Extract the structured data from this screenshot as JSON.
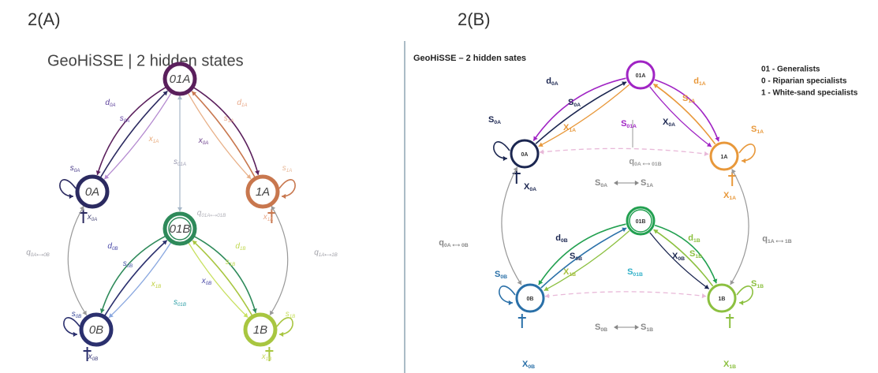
{
  "panels": [
    {
      "label": "2(A)",
      "title": "GeoHiSSE | 2 hidden states",
      "nodes": [
        {
          "label": "01A"
        },
        {
          "label": "0A"
        },
        {
          "label": "1A"
        },
        {
          "label": "01B"
        },
        {
          "label": "0B"
        },
        {
          "label": "1B"
        }
      ],
      "labels": [
        {
          "sym": "d",
          "sub": "0A"
        },
        {
          "sym": "s",
          "sub": "0A"
        },
        {
          "sym": "x",
          "sub": "1A"
        },
        {
          "sym": "s",
          "sub": "01A"
        },
        {
          "sym": "x",
          "sub": "0A"
        },
        {
          "sym": "s",
          "sub": "1A"
        },
        {
          "sym": "d",
          "sub": "1A"
        },
        {
          "sym": "s",
          "sub": "0A"
        },
        {
          "sym": "s",
          "sub": "1A"
        },
        {
          "sym": "x",
          "sub": "0A"
        },
        {
          "sym": "x",
          "sub": "1A"
        },
        {
          "sym": "q",
          "sub": "01A⟷01B"
        },
        {
          "sym": "q",
          "sub": "0A⟷0B"
        },
        {
          "sym": "q",
          "sub": "1A⟷1B"
        },
        {
          "sym": "d",
          "sub": "0B"
        },
        {
          "sym": "s",
          "sub": "0B"
        },
        {
          "sym": "x",
          "sub": "1B"
        },
        {
          "sym": "s",
          "sub": "01B"
        },
        {
          "sym": "x",
          "sub": "0B"
        },
        {
          "sym": "s",
          "sub": "1B"
        },
        {
          "sym": "d",
          "sub": "1B"
        },
        {
          "sym": "s",
          "sub": "0B"
        },
        {
          "sym": "s",
          "sub": "1B"
        },
        {
          "sym": "x",
          "sub": "0B"
        },
        {
          "sym": "x",
          "sub": "1B"
        }
      ]
    },
    {
      "label": "2(B)",
      "title": "GeoHiSSE – 2 hidden sates",
      "legend": [
        "01 - Generalists",
        "0  - Riparian specialists",
        "1  - White-sand specialists"
      ],
      "nodes": [
        {
          "label": "01A"
        },
        {
          "label": "0A"
        },
        {
          "label": "1A"
        },
        {
          "label": "01B"
        },
        {
          "label": "0B"
        },
        {
          "label": "1B"
        }
      ],
      "labels": [
        {
          "sym": "d",
          "sub": "0A"
        },
        {
          "sym": "S",
          "sub": "0A"
        },
        {
          "sym": "X",
          "sub": "1A"
        },
        {
          "sym": "S",
          "sub": "01A"
        },
        {
          "sym": "X",
          "sub": "0A"
        },
        {
          "sym": "S",
          "sub": "1A"
        },
        {
          "sym": "d",
          "sub": "1A"
        },
        {
          "sym": "S",
          "sub": "0A"
        },
        {
          "sym": "S",
          "sub": "1A"
        },
        {
          "sym": "X",
          "sub": "0A"
        },
        {
          "sym": "X",
          "sub": "1A"
        },
        {
          "sym": "q",
          "sub": "0A ⟷ 01B"
        },
        {
          "sym": "q",
          "sub": "0A ⟷ 0B"
        },
        {
          "sym": "q",
          "sub": "1A ⟷ 1B"
        },
        {
          "sym": "d",
          "sub": "0B"
        },
        {
          "sym": "S",
          "sub": "0B"
        },
        {
          "sym": "X",
          "sub": "1B"
        },
        {
          "sym": "S",
          "sub": "01B"
        },
        {
          "sym": "X",
          "sub": "0B"
        },
        {
          "sym": "S",
          "sub": "1B"
        },
        {
          "sym": "d",
          "sub": "1B"
        },
        {
          "sym": "S",
          "sub": "0B"
        },
        {
          "sym": "S",
          "sub": "1B"
        },
        {
          "sym": "X",
          "sub": "0B"
        },
        {
          "sym": "X",
          "sub": "1B"
        },
        {
          "sym": "S",
          "sub": "0A"
        },
        {
          "sym": "S",
          "sub": "1A"
        },
        {
          "sym": "S",
          "sub": "0B"
        },
        {
          "sym": "S",
          "sub": "1B"
        }
      ]
    }
  ]
}
